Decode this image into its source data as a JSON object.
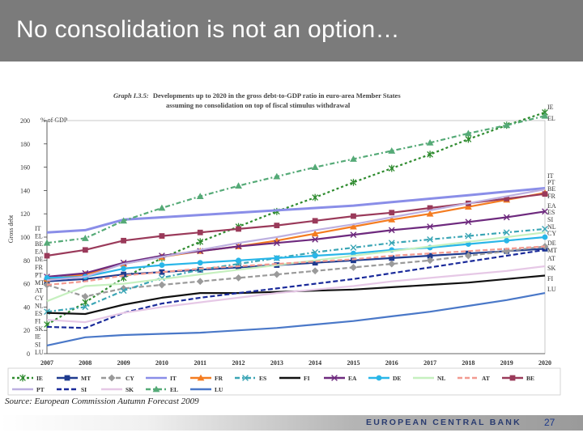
{
  "slide": {
    "title": "No consolidation is not an option…",
    "source": "Source: European Commission Autumn Forecast 2009",
    "footer": "EUROPEAN CENTRAL BANK",
    "page_number": "27"
  },
  "colors": {
    "title_bar": "#7b7b7b",
    "footer_text": "#2a3c70"
  },
  "chart_data": {
    "type": "line",
    "title_label": "Graph I.3.5:",
    "title": "Developments up to 2020 in the gross debt-to-GDP ratio in euro-area Member States",
    "subtitle": "assuming no consolidation on top of fiscal stimulus withdrawal",
    "ylabel": "Gross debt",
    "yunit": "% of GDP",
    "ylim": [
      0,
      200
    ],
    "yticks": [
      0,
      20,
      40,
      60,
      80,
      100,
      120,
      140,
      160,
      180,
      200
    ],
    "x": [
      "2007",
      "2008",
      "2009",
      "2010",
      "2011",
      "2012",
      "2013",
      "2014",
      "2015",
      "2016",
      "2017",
      "2018",
      "2019",
      "2020"
    ],
    "series": [
      {
        "name": "IE",
        "color": "#2e8b2e",
        "style": "dotted",
        "marker": "star",
        "values": [
          25,
          44,
          65,
          82,
          96,
          109,
          122,
          134,
          147,
          159,
          171,
          184,
          196,
          207
        ]
      },
      {
        "name": "MT",
        "color": "#1f3b8f",
        "style": "solid",
        "marker": "square",
        "values": [
          62,
          64,
          68,
          70,
          72,
          74,
          76,
          78,
          80,
          82,
          84,
          86,
          88,
          90
        ]
      },
      {
        "name": "CY",
        "color": "#9a9a9a",
        "style": "dashed",
        "marker": "diamond",
        "values": [
          59,
          49,
          56,
          59,
          62,
          65,
          68,
          71,
          74,
          77,
          80,
          84,
          88,
          92
        ]
      },
      {
        "name": "IT",
        "color": "#8a8ee8",
        "style": "solid",
        "marker": "none",
        "values": [
          104,
          106,
          115,
          117,
          119,
          121,
          123,
          125,
          127,
          130,
          133,
          136,
          139,
          142
        ]
      },
      {
        "name": "FR",
        "color": "#f47c20",
        "style": "solid",
        "marker": "triangle",
        "values": [
          64,
          68,
          77,
          83,
          88,
          92,
          97,
          103,
          109,
          115,
          120,
          126,
          132,
          138
        ]
      },
      {
        "name": "ES",
        "color": "#3aa5b5",
        "style": "dashdot",
        "marker": "cross",
        "values": [
          36,
          40,
          54,
          65,
          72,
          77,
          82,
          87,
          91,
          95,
          98,
          101,
          104,
          107
        ]
      },
      {
        "name": "FI",
        "color": "#111111",
        "style": "solid",
        "marker": "none",
        "values": [
          35,
          34,
          42,
          48,
          52,
          52,
          53,
          54,
          55,
          57,
          59,
          61,
          64,
          67
        ]
      },
      {
        "name": "EA",
        "color": "#6e2a7e",
        "style": "solid",
        "marker": "x",
        "values": [
          66,
          69,
          78,
          84,
          88,
          92,
          95,
          98,
          102,
          106,
          109,
          113,
          117,
          122
        ]
      },
      {
        "name": "DE",
        "color": "#29b6e8",
        "style": "solid",
        "marker": "circle",
        "values": [
          65,
          66,
          73,
          76,
          78,
          80,
          82,
          84,
          86,
          89,
          91,
          94,
          97,
          100
        ]
      },
      {
        "name": "NL",
        "color": "#c6f0bf",
        "style": "solid",
        "marker": "none",
        "values": [
          45,
          58,
          60,
          64,
          68,
          72,
          76,
          80,
          84,
          88,
          92,
          96,
          100,
          104
        ]
      },
      {
        "name": "AT",
        "color": "#f29a90",
        "style": "dashed",
        "marker": "none",
        "values": [
          59,
          62,
          67,
          70,
          73,
          75,
          77,
          79,
          81,
          84,
          86,
          88,
          90,
          92
        ]
      },
      {
        "name": "BE",
        "color": "#9a3a5a",
        "style": "solid",
        "marker": "square",
        "values": [
          84,
          89,
          97,
          101,
          104,
          107,
          110,
          114,
          118,
          121,
          125,
          129,
          133,
          137
        ]
      },
      {
        "name": "PT",
        "color": "#bdb0e0",
        "style": "solid",
        "marker": "none",
        "values": [
          63,
          66,
          77,
          83,
          89,
          95,
          100,
          106,
          111,
          117,
          123,
          129,
          135,
          141
        ]
      },
      {
        "name": "SI",
        "color": "#1a2a9a",
        "style": "dashed",
        "marker": "none",
        "values": [
          23,
          22,
          35,
          43,
          48,
          52,
          56,
          60,
          64,
          69,
          74,
          79,
          84,
          89
        ]
      },
      {
        "name": "SK",
        "color": "#e6c8e6",
        "style": "solid",
        "marker": "none",
        "values": [
          29,
          27,
          35,
          40,
          44,
          48,
          52,
          55,
          58,
          62,
          65,
          68,
          71,
          75
        ]
      },
      {
        "name": "EL",
        "color": "#55aa77",
        "style": "dashdot",
        "marker": "triangle",
        "values": [
          95,
          99,
          114,
          125,
          135,
          144,
          152,
          160,
          167,
          174,
          181,
          189,
          196,
          204
        ]
      },
      {
        "name": "LU",
        "color": "#4a78c8",
        "style": "solid",
        "marker": "none",
        "values": [
          7,
          14,
          16,
          17,
          18,
          20,
          22,
          25,
          28,
          32,
          36,
          41,
          46,
          52
        ]
      }
    ],
    "left_labels": [
      "IT",
      "EL",
      "BE",
      "EA",
      "DE",
      "FR",
      "PT",
      "MT",
      "AT",
      "CY",
      "NL",
      "ES",
      "FI",
      "SK",
      "IE",
      "SI",
      "LU"
    ],
    "right_labels": [
      "IE",
      "EL",
      "IT",
      "PT",
      "BE",
      "FR",
      "EA",
      "ES",
      "SI",
      "NL",
      "CY",
      "DE",
      "MT",
      "AT",
      "SK",
      "FI",
      "LU"
    ],
    "legend": [
      "IE",
      "MT",
      "CY",
      "IT",
      "FR",
      "ES",
      "FI",
      "EA",
      "DE",
      "NL",
      "AT",
      "BE",
      "PT",
      "SI",
      "SK",
      "EL",
      "LU"
    ]
  }
}
